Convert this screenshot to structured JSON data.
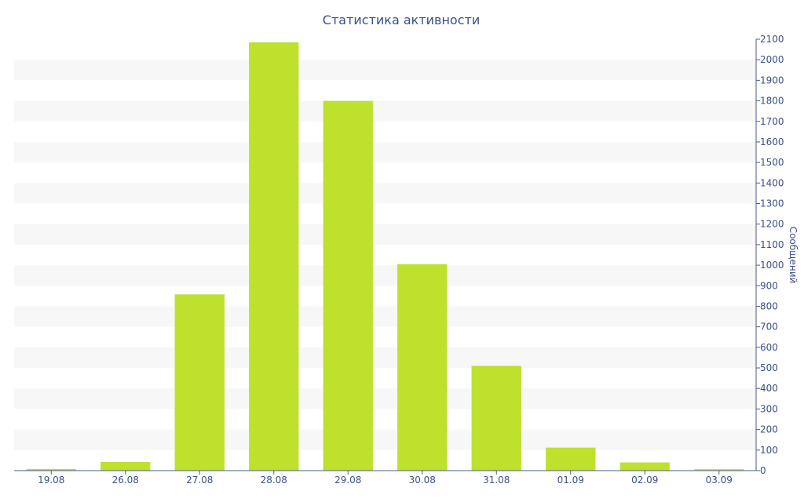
{
  "chart_data": {
    "type": "bar",
    "title": "Статистика активности",
    "xlabel": "",
    "ylabel": "Сообщений",
    "categories": [
      "19.08",
      "26.08",
      "27.08",
      "28.08",
      "29.08",
      "30.08",
      "31.08",
      "01.09",
      "02.09",
      "03.09"
    ],
    "values": [
      8,
      42,
      858,
      2085,
      1800,
      1005,
      510,
      112,
      40,
      7
    ],
    "ylim": [
      0,
      2100
    ],
    "ytick_step": 100,
    "y_axis_position": "right",
    "grid": "alternating horizontal bands",
    "legend": "none",
    "colors": {
      "bar": "#bde12d",
      "band": "#f7f7f7",
      "text": "#3b4f8a",
      "axis": "#4a5b8f"
    }
  }
}
